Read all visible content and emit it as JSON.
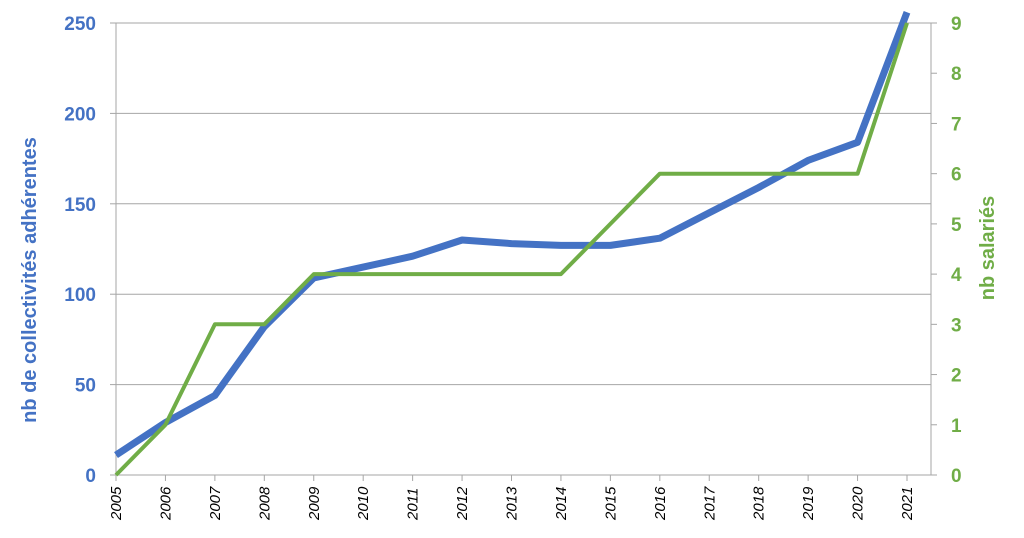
{
  "chart_data": {
    "type": "line",
    "title": "",
    "x": [
      "2005",
      "2006",
      "2007",
      "2008",
      "2009",
      "2010",
      "2011",
      "2012",
      "2013",
      "2014",
      "2015",
      "2016",
      "2017",
      "2018",
      "2019",
      "2020",
      "2021"
    ],
    "ylabel": "nb de collectivités adhérentes",
    "y2label": "nb salariés",
    "ylim": [
      0,
      250
    ],
    "y2lim": [
      0,
      9
    ],
    "yticks": [
      "0",
      "50",
      "100",
      "150",
      "200",
      "250"
    ],
    "y2ticks": [
      "0",
      "1",
      "2",
      "3",
      "4",
      "5",
      "6",
      "7",
      "8",
      "9"
    ],
    "grid": true,
    "series": [
      {
        "axis": "left",
        "color": "#4472C4",
        "values": [
          11,
          29,
          44,
          82,
          109,
          115,
          121,
          130,
          128,
          127,
          127,
          131,
          145,
          159,
          174,
          184,
          256
        ]
      },
      {
        "axis": "right",
        "color": "#70AD47",
        "values": [
          0,
          1,
          3,
          3,
          4,
          4,
          4,
          4,
          4,
          4,
          5,
          6,
          6,
          6,
          6,
          6,
          9
        ]
      }
    ],
    "colors": {
      "left_axis_text": "#4472C4",
      "right_axis_text": "#70AD47",
      "grid": "#a6a6a6"
    }
  }
}
